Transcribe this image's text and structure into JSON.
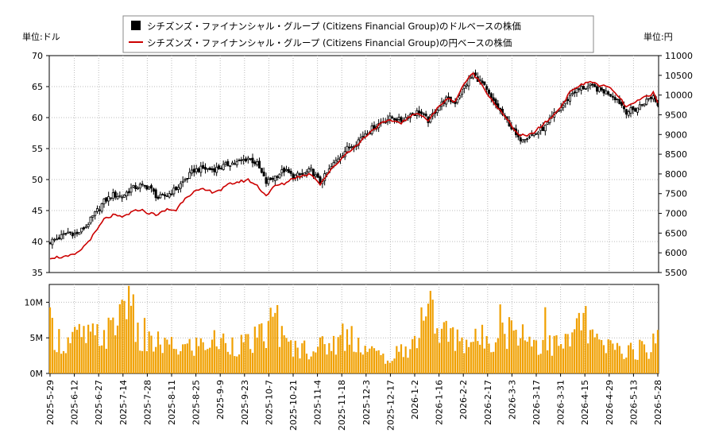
{
  "chart_data": {
    "type": "candlestick-line-bar",
    "legend": [
      {
        "label": "シチズンズ・ファイナンシャル・グループ (Citizens Financial Group)のドルベースの株価",
        "color": "#000000",
        "marker": "square"
      },
      {
        "label": "シチズンズ・ファイナンシャル・グループ (Citizens Financial Group)の円ベースの株価",
        "color": "#cc0000",
        "marker": "line"
      }
    ],
    "units": {
      "left": "単位:ドル",
      "right": "単位:円"
    },
    "colors": {
      "candle": "#000000",
      "yen_line": "#cc0000",
      "volume": "#f0a000",
      "grid": "#bbbbbb"
    },
    "price_axis": {
      "left_ticks": [
        "70",
        "65",
        "60",
        "55",
        "50",
        "45",
        "40",
        "35"
      ],
      "left_range": [
        35,
        70
      ],
      "right_ticks": [
        "11000",
        "10500",
        "10000",
        "9500",
        "9000",
        "8500",
        "8000",
        "7500",
        "7000",
        "6500",
        "6000",
        "5500"
      ],
      "right_range": [
        5500,
        11000
      ]
    },
    "volume_axis": {
      "ticks": [
        "10M",
        "5M",
        "0M"
      ],
      "range": [
        0,
        12.5
      ]
    },
    "x_ticks": [
      "2025-5-29",
      "2025-6-12",
      "2025-6-27",
      "2025-7-14",
      "2025-7-28",
      "2025-8-11",
      "2025-8-25",
      "2025-9-9",
      "2025-9-23",
      "2025-10-7",
      "2025-10-21",
      "2025-11-4",
      "2025-11-18",
      "2025-12-3",
      "2025-12-17",
      "2026-1-2",
      "2026-1-16",
      "2026-2-2",
      "2026-2-17",
      "2026-3-3",
      "2026-3-17",
      "2026-3-31",
      "2026-4-15",
      "2026-4-29",
      "2026-5-13",
      "2026-5-28"
    ],
    "usd_close_anchors": [
      [
        0,
        40.0
      ],
      [
        4,
        40.6
      ],
      [
        8,
        41.5
      ],
      [
        12,
        41.2
      ],
      [
        16,
        42.5
      ],
      [
        20,
        44.5
      ],
      [
        24,
        46.5
      ],
      [
        28,
        47.5
      ],
      [
        32,
        47.3
      ],
      [
        36,
        48.5
      ],
      [
        40,
        49.0
      ],
      [
        44,
        48.8
      ],
      [
        48,
        47.0
      ],
      [
        52,
        47.5
      ],
      [
        56,
        48.5
      ],
      [
        60,
        50.0
      ],
      [
        64,
        51.5
      ],
      [
        68,
        51.8
      ],
      [
        72,
        51.6
      ],
      [
        76,
        52.0
      ],
      [
        80,
        52.6
      ],
      [
        84,
        52.8
      ],
      [
        88,
        53.5
      ],
      [
        92,
        52.5
      ],
      [
        96,
        49.5
      ],
      [
        100,
        50.5
      ],
      [
        104,
        51.5
      ],
      [
        108,
        50.5
      ],
      [
        112,
        50.8
      ],
      [
        116,
        51.5
      ],
      [
        120,
        49.5
      ],
      [
        124,
        51.5
      ],
      [
        128,
        53.5
      ],
      [
        132,
        55.0
      ],
      [
        136,
        56.0
      ],
      [
        140,
        57.5
      ],
      [
        144,
        58.5
      ],
      [
        148,
        59.5
      ],
      [
        152,
        60.0
      ],
      [
        156,
        59.5
      ],
      [
        160,
        60.5
      ],
      [
        164,
        61.0
      ],
      [
        168,
        59.5
      ],
      [
        172,
        61.5
      ],
      [
        176,
        63.0
      ],
      [
        180,
        62.5
      ],
      [
        184,
        65.0
      ],
      [
        188,
        67.0
      ],
      [
        192,
        65.5
      ],
      [
        196,
        63.0
      ],
      [
        200,
        61.0
      ],
      [
        204,
        59.0
      ],
      [
        208,
        56.5
      ],
      [
        212,
        57.0
      ],
      [
        216,
        57.5
      ],
      [
        220,
        58.5
      ],
      [
        224,
        60.5
      ],
      [
        228,
        62.0
      ],
      [
        232,
        64.0
      ],
      [
        236,
        64.8
      ],
      [
        240,
        65.0
      ],
      [
        244,
        64.5
      ],
      [
        248,
        64.0
      ],
      [
        252,
        63.0
      ],
      [
        256,
        61.0
      ],
      [
        260,
        61.3
      ],
      [
        264,
        62.5
      ],
      [
        268,
        63.5
      ],
      [
        270,
        62.0
      ]
    ],
    "yen_close_anchors": [
      [
        0,
        5880
      ],
      [
        8,
        5900
      ],
      [
        12,
        5980
      ],
      [
        16,
        6220
      ],
      [
        20,
        6500
      ],
      [
        24,
        6850
      ],
      [
        28,
        6950
      ],
      [
        32,
        6900
      ],
      [
        36,
        7020
      ],
      [
        40,
        7100
      ],
      [
        44,
        7000
      ],
      [
        48,
        6970
      ],
      [
        52,
        7100
      ],
      [
        56,
        7080
      ],
      [
        60,
        7400
      ],
      [
        64,
        7550
      ],
      [
        68,
        7600
      ],
      [
        72,
        7550
      ],
      [
        76,
        7600
      ],
      [
        80,
        7750
      ],
      [
        84,
        7800
      ],
      [
        88,
        7850
      ],
      [
        92,
        7700
      ],
      [
        96,
        7450
      ],
      [
        100,
        7700
      ],
      [
        104,
        7750
      ],
      [
        108,
        7900
      ],
      [
        112,
        7950
      ],
      [
        116,
        8000
      ],
      [
        120,
        7750
      ],
      [
        124,
        8050
      ],
      [
        128,
        8300
      ],
      [
        132,
        8550
      ],
      [
        136,
        8700
      ],
      [
        140,
        8950
      ],
      [
        144,
        9150
      ],
      [
        148,
        9300
      ],
      [
        152,
        9350
      ],
      [
        156,
        9300
      ],
      [
        160,
        9450
      ],
      [
        164,
        9550
      ],
      [
        168,
        9350
      ],
      [
        172,
        9650
      ],
      [
        176,
        9900
      ],
      [
        180,
        9850
      ],
      [
        184,
        10300
      ],
      [
        188,
        10550
      ],
      [
        192,
        10250
      ],
      [
        196,
        9900
      ],
      [
        200,
        9600
      ],
      [
        204,
        9300
      ],
      [
        208,
        9000
      ],
      [
        212,
        8950
      ],
      [
        216,
        9100
      ],
      [
        220,
        9300
      ],
      [
        224,
        9500
      ],
      [
        228,
        9800
      ],
      [
        232,
        10150
      ],
      [
        236,
        10250
      ],
      [
        240,
        10350
      ],
      [
        244,
        10250
      ],
      [
        248,
        10200
      ],
      [
        252,
        10000
      ],
      [
        256,
        9700
      ],
      [
        260,
        9800
      ],
      [
        264,
        9950
      ],
      [
        268,
        10050
      ],
      [
        270,
        9800
      ]
    ],
    "volume_anchors_M": [
      [
        0,
        6.5
      ],
      [
        6,
        4.0
      ],
      [
        12,
        5.2
      ],
      [
        20,
        5.0
      ],
      [
        28,
        6.0
      ],
      [
        34,
        11.5
      ],
      [
        40,
        4.0
      ],
      [
        48,
        4.2
      ],
      [
        56,
        3.5
      ],
      [
        64,
        3.8
      ],
      [
        72,
        4.5
      ],
      [
        80,
        4.3
      ],
      [
        88,
        4.0
      ],
      [
        96,
        5.5
      ],
      [
        100,
        8.5
      ],
      [
        104,
        4.0
      ],
      [
        110,
        3.5
      ],
      [
        118,
        3.6
      ],
      [
        126,
        4.2
      ],
      [
        134,
        5.5
      ],
      [
        140,
        3.5
      ],
      [
        150,
        2.0
      ],
      [
        156,
        3.0
      ],
      [
        162,
        4.5
      ],
      [
        168,
        11.0
      ],
      [
        172,
        6.0
      ],
      [
        180,
        5.0
      ],
      [
        188,
        4.5
      ],
      [
        200,
        5.5
      ],
      [
        208,
        6.5
      ],
      [
        214,
        4.5
      ],
      [
        222,
        4.0
      ],
      [
        230,
        4.2
      ],
      [
        236,
        7.5
      ],
      [
        244,
        3.8
      ],
      [
        252,
        3.5
      ],
      [
        260,
        3.2
      ],
      [
        266,
        3.5
      ],
      [
        270,
        5.0
      ]
    ],
    "volume_spikes": [
      [
        35,
        12.3
      ],
      [
        36,
        9.5
      ],
      [
        100,
        8.5
      ],
      [
        101,
        9.6
      ],
      [
        169,
        11.6
      ],
      [
        168,
        9.8
      ],
      [
        200,
        9.7
      ],
      [
        220,
        9.3
      ],
      [
        237,
        8.5
      ],
      [
        150,
        1.8
      ],
      [
        151,
        1.5
      ],
      [
        42,
        7.8
      ],
      [
        130,
        7.0
      ],
      [
        175,
        7.2
      ]
    ]
  }
}
